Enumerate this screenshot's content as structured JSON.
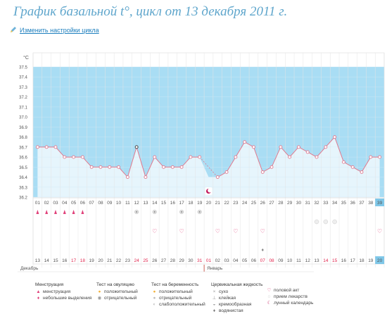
{
  "page": {
    "title": "График базальной t°, цикл от 13 декабря 2011 г.",
    "settings_link": "Изменить настройки цикла"
  },
  "chart_data": {
    "type": "line",
    "title": "",
    "xlabel": "",
    "ylabel": "°C",
    "ylim": [
      36.2,
      37.5
    ],
    "y_ticks": [
      "37.5",
      "37.4",
      "37.3",
      "37.2",
      "37.1",
      "37.0",
      "36.9",
      "36.8",
      "36.7",
      "36.6",
      "36.5",
      "36.4",
      "36.3",
      "36.2"
    ],
    "day_numbers": [
      "01",
      "02",
      "03",
      "04",
      "05",
      "06",
      "07",
      "08",
      "09",
      "10",
      "11",
      "12",
      "13",
      "14",
      "15",
      "16",
      "17",
      "18",
      "19",
      "20",
      "21",
      "22",
      "23",
      "24",
      "25",
      "26",
      "27",
      "28",
      "29",
      "30",
      "31",
      "32",
      "33",
      "34",
      "35",
      "36",
      "37",
      "38",
      "39"
    ],
    "dates": [
      "13",
      "14",
      "15",
      "16",
      "17",
      "18",
      "19",
      "20",
      "21",
      "22",
      "23",
      "24",
      "25",
      "26",
      "27",
      "28",
      "29",
      "30",
      "31",
      "01",
      "02",
      "03",
      "04",
      "05",
      "06",
      "07",
      "08",
      "09",
      "10",
      "11",
      "12",
      "13",
      "14",
      "15",
      "16",
      "17",
      "18",
      "19",
      "20"
    ],
    "red_dates_index": [
      4,
      5,
      11,
      12,
      18,
      19,
      25,
      26,
      32,
      33
    ],
    "values": [
      36.7,
      36.7,
      36.7,
      36.6,
      36.6,
      36.6,
      36.5,
      36.5,
      36.5,
      36.5,
      36.4,
      36.7,
      36.4,
      36.6,
      36.5,
      36.5,
      36.5,
      36.6,
      36.6,
      null,
      36.4,
      36.45,
      36.6,
      36.75,
      36.7,
      36.45,
      36.5,
      36.7,
      36.6,
      36.7,
      36.65,
      36.6,
      36.7,
      36.8,
      36.55,
      36.5,
      36.45,
      36.6,
      36.6
    ],
    "months": [
      "Декабрь",
      "Январь"
    ],
    "highlight_color": "#a9ddf4",
    "line_color": "#e07a8f"
  },
  "legend": {
    "menstruation": {
      "title": "Менструация",
      "items": [
        "менструация",
        "небольшие выделения"
      ]
    },
    "ovulation": {
      "title": "Тест на овуляцию",
      "items": [
        "положительный",
        "отрицательный"
      ]
    },
    "pregnancy": {
      "title": "Тест на беременность",
      "items": [
        "положительный",
        "отрицательный",
        "слабоположительный"
      ]
    },
    "mucus": {
      "title": "Цервикальная жидкость",
      "items": [
        "сухо",
        "клейкая",
        "кремообразная",
        "водянистая"
      ]
    },
    "other": {
      "items": [
        "половой акт",
        "прием лекарств",
        "лунный календарь"
      ]
    }
  },
  "icons": {
    "settings": "pencil-icon",
    "menstruation": "drop-icon",
    "ovulation": "circle-icon",
    "pregnancy": "circle-icon",
    "intercourse": "heart-icon",
    "moon": "moon-icon"
  }
}
